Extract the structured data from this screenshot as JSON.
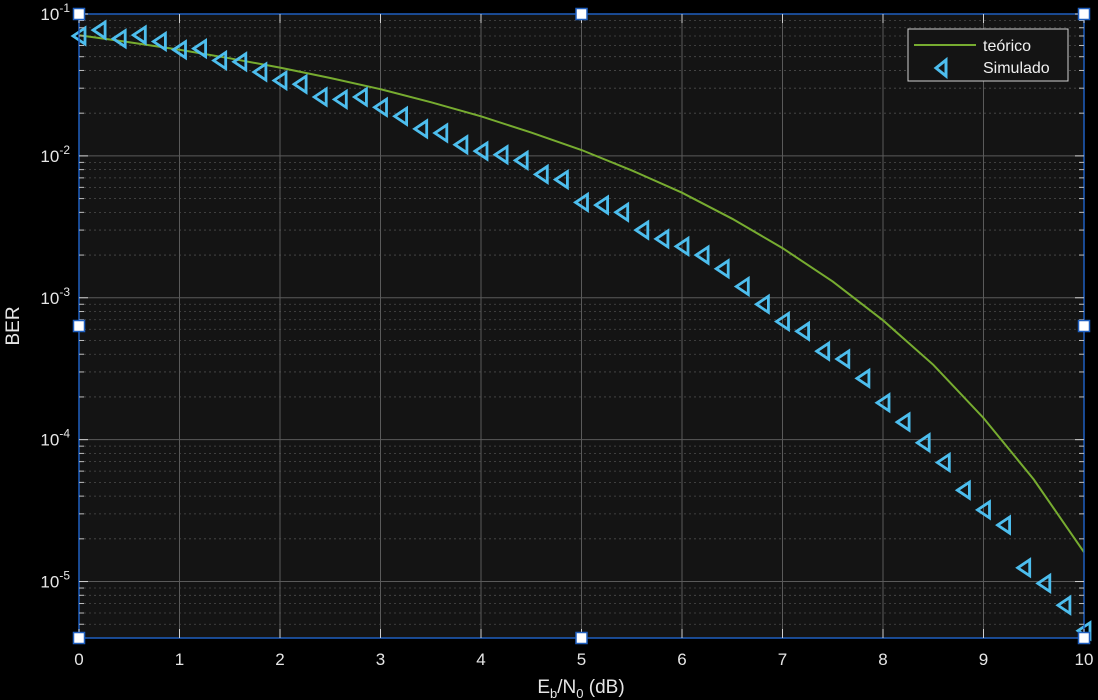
{
  "chart_data": {
    "type": "line",
    "x_label": {
      "main": "E",
      "sub1": "b",
      "mid": "/N",
      "sub2": "0",
      "tail": "  (dB)"
    },
    "y_label": "BER",
    "xlim": [
      0,
      10
    ],
    "ylim": [
      4e-06,
      0.1
    ],
    "y_scale": "log",
    "x_ticks": [
      "0",
      "1",
      "2",
      "3",
      "4",
      "5",
      "6",
      "7",
      "8",
      "9",
      "10"
    ],
    "y_ticks": [
      {
        "value": 0.1,
        "base": "10",
        "exp": "-1"
      },
      {
        "value": 0.01,
        "base": "10",
        "exp": "-2"
      },
      {
        "value": 0.001,
        "base": "10",
        "exp": "-3"
      },
      {
        "value": 0.0001,
        "base": "10",
        "exp": "-4"
      },
      {
        "value": 1e-05,
        "base": "10",
        "exp": "-5"
      }
    ],
    "grid": true,
    "minor_grid": true,
    "legend_position": "top-right",
    "colors": {
      "background": "#141414",
      "figure": "#000000",
      "grid": "#5a5a5a",
      "teorico": "#77ac30",
      "simulado": "#4dbeee",
      "selection": "#1f5fbf"
    },
    "series": [
      {
        "name": "teórico",
        "style": "line",
        "x": [
          0,
          0.5,
          1,
          1.5,
          2,
          2.5,
          3,
          3.5,
          4,
          4.5,
          5,
          5.5,
          6,
          6.5,
          7,
          7.5,
          8,
          8.5,
          9,
          9.5,
          10
        ],
        "y": [
          0.0709,
          0.0633,
          0.0559,
          0.0487,
          0.0419,
          0.0354,
          0.0295,
          0.0239,
          0.019,
          0.0146,
          0.011,
          0.0079,
          0.0055,
          0.0036,
          0.00224,
          0.0013,
          0.000694,
          0.000337,
          0.000142,
          5.24e-05,
          1.61e-05
        ]
      },
      {
        "name": "Simulado",
        "style": "markers",
        "marker": "triangle-left",
        "x": [
          0,
          0.2,
          0.4,
          0.6,
          0.8,
          1.0,
          1.2,
          1.4,
          1.6,
          1.8,
          2.0,
          2.2,
          2.4,
          2.6,
          2.8,
          3.0,
          3.2,
          3.4,
          3.6,
          3.8,
          4.0,
          4.2,
          4.4,
          4.6,
          4.8,
          5.0,
          5.2,
          5.4,
          5.6,
          5.8,
          6.0,
          6.2,
          6.4,
          6.6,
          6.8,
          7.0,
          7.2,
          7.4,
          7.6,
          7.8,
          8.0,
          8.2,
          8.4,
          8.6,
          8.8,
          9.0,
          9.2,
          9.4,
          9.6,
          9.8,
          10.0
        ],
        "y": [
          0.07,
          0.077,
          0.067,
          0.071,
          0.064,
          0.056,
          0.057,
          0.047,
          0.046,
          0.039,
          0.034,
          0.032,
          0.026,
          0.025,
          0.026,
          0.022,
          0.019,
          0.0155,
          0.0145,
          0.012,
          0.0108,
          0.0102,
          0.0093,
          0.0074,
          0.0068,
          0.0047,
          0.0045,
          0.004,
          0.003,
          0.0026,
          0.0023,
          0.002,
          0.0016,
          0.0012,
          0.0009,
          0.00068,
          0.00058,
          0.00042,
          0.00037,
          0.00027,
          0.000182,
          0.000133,
          9.5e-05,
          6.9e-05,
          4.4e-05,
          3.2e-05,
          2.5e-05,
          1.25e-05,
          9.7e-06,
          6.8e-06,
          4.5e-06
        ]
      }
    ]
  }
}
